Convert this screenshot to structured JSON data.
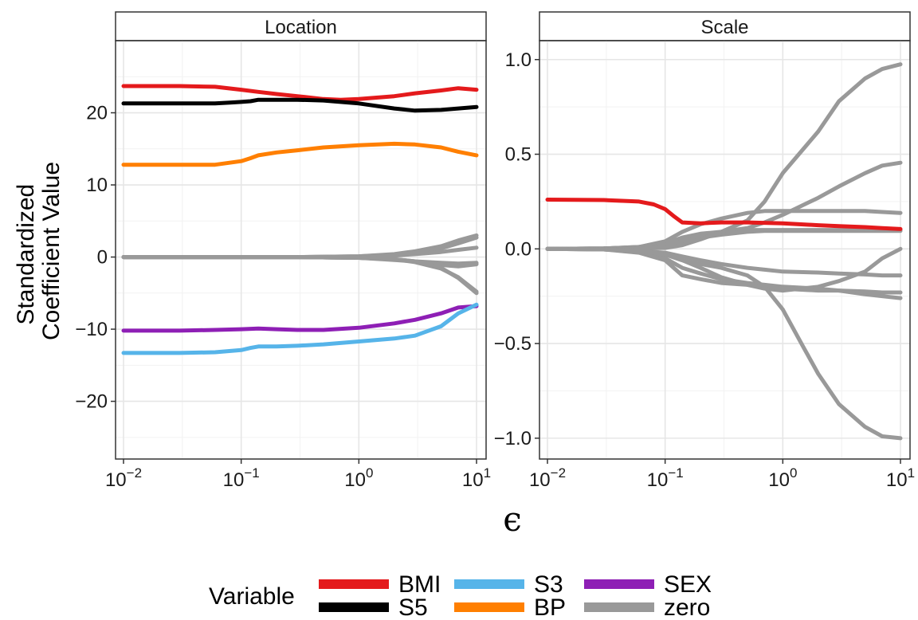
{
  "chart_data": {
    "type": "line",
    "xlabel": "ϵ",
    "ylabel_lines": [
      "Standardized",
      "Coefficient Value"
    ],
    "x_scale": "log10",
    "xlim": [
      0.01,
      10
    ],
    "x_ticks": [
      {
        "base": "10",
        "exp": "−2",
        "value": 0.01
      },
      {
        "base": "10",
        "exp": "−1",
        "value": 0.1
      },
      {
        "base": "10",
        "exp": "0",
        "value": 1
      },
      {
        "base": "10",
        "exp": "1",
        "value": 10
      }
    ],
    "grid": true,
    "legend": {
      "title": "Variable",
      "position": "bottom",
      "items": [
        {
          "name": "BMI",
          "color": "#E41A1C"
        },
        {
          "name": "S5",
          "color": "#000000"
        },
        {
          "name": "S3",
          "color": "#56B4E9"
        },
        {
          "name": "BP",
          "color": "#FF7F00"
        },
        {
          "name": "SEX",
          "color": "#8E1FB5"
        },
        {
          "name": "zero",
          "color": "#999999"
        }
      ]
    },
    "panels": [
      {
        "title": "Location",
        "ylim": [
          -28,
          30
        ],
        "y_ticks": [
          {
            "value": -20,
            "label": "−20"
          },
          {
            "value": -10,
            "label": "−10"
          },
          {
            "value": 0,
            "label": "0"
          },
          {
            "value": 10,
            "label": "10"
          },
          {
            "value": 20,
            "label": "20"
          }
        ],
        "series": [
          {
            "name": "BMI",
            "color": "#E41A1C",
            "x": [
              0.01,
              0.03,
              0.06,
              0.1,
              0.14,
              0.2,
              0.3,
              0.5,
              0.7,
              1,
              2,
              3,
              5,
              7,
              10
            ],
            "y": [
              23.7,
              23.7,
              23.6,
              23.2,
              22.9,
              22.6,
              22.3,
              21.9,
              21.8,
              21.9,
              22.3,
              22.7,
              23.1,
              23.4,
              23.2
            ]
          },
          {
            "name": "S5",
            "color": "#000000",
            "x": [
              0.01,
              0.03,
              0.06,
              0.08,
              0.1,
              0.12,
              0.14,
              0.2,
              0.3,
              0.5,
              1,
              2,
              3,
              5,
              7,
              10
            ],
            "y": [
              21.3,
              21.3,
              21.3,
              21.4,
              21.5,
              21.6,
              21.8,
              21.8,
              21.8,
              21.7,
              21.3,
              20.6,
              20.3,
              20.4,
              20.6,
              20.8
            ]
          },
          {
            "name": "BP",
            "color": "#FF7F00",
            "x": [
              0.01,
              0.03,
              0.06,
              0.1,
              0.12,
              0.14,
              0.2,
              0.3,
              0.5,
              1,
              2,
              3,
              5,
              7,
              10
            ],
            "y": [
              12.8,
              12.8,
              12.8,
              13.3,
              13.7,
              14.1,
              14.5,
              14.8,
              15.2,
              15.5,
              15.7,
              15.6,
              15.2,
              14.6,
              14.1
            ]
          },
          {
            "name": "SEX",
            "color": "#8E1FB5",
            "x": [
              0.01,
              0.03,
              0.06,
              0.1,
              0.14,
              0.2,
              0.3,
              0.5,
              1,
              2,
              3,
              5,
              7,
              10
            ],
            "y": [
              -10.2,
              -10.2,
              -10.1,
              -10.0,
              -9.9,
              -10.0,
              -10.1,
              -10.1,
              -9.8,
              -9.2,
              -8.7,
              -7.8,
              -7.0,
              -6.8
            ]
          },
          {
            "name": "S3",
            "color": "#56B4E9",
            "x": [
              0.01,
              0.03,
              0.06,
              0.1,
              0.12,
              0.14,
              0.2,
              0.3,
              0.5,
              1,
              2,
              3,
              5,
              7,
              10
            ],
            "y": [
              -13.3,
              -13.3,
              -13.2,
              -12.9,
              -12.6,
              -12.4,
              -12.4,
              -12.3,
              -12.1,
              -11.7,
              -11.3,
              -10.9,
              -9.6,
              -7.8,
              -6.6
            ]
          },
          {
            "name": "zero",
            "color": "#999999",
            "x": [
              0.01,
              0.3,
              1,
              2,
              3,
              5,
              7,
              10
            ],
            "y": [
              0,
              0,
              0.1,
              0.4,
              0.8,
              1.5,
              2.3,
              3.0
            ]
          },
          {
            "name": "zero",
            "color": "#999999",
            "x": [
              0.01,
              0.3,
              1,
              2,
              3,
              5,
              7,
              10
            ],
            "y": [
              0,
              0,
              0.1,
              0.3,
              0.6,
              1.2,
              1.9,
              2.7
            ]
          },
          {
            "name": "zero",
            "color": "#999999",
            "x": [
              0.01,
              0.3,
              1,
              2,
              3,
              5,
              7,
              10
            ],
            "y": [
              0,
              0,
              0.05,
              0.2,
              0.4,
              0.7,
              1.0,
              1.3
            ]
          },
          {
            "name": "zero",
            "color": "#999999",
            "x": [
              0.01,
              0.3,
              1,
              2,
              3,
              5,
              7,
              10
            ],
            "y": [
              0,
              0,
              -0.1,
              -0.4,
              -0.6,
              -0.8,
              -0.9,
              -0.8
            ]
          },
          {
            "name": "zero",
            "color": "#999999",
            "x": [
              0.01,
              0.3,
              1,
              2,
              3,
              5,
              7,
              10
            ],
            "y": [
              0,
              0,
              -0.1,
              -0.3,
              -0.6,
              -1.1,
              -1.3,
              -1.0
            ]
          },
          {
            "name": "zero",
            "color": "#999999",
            "x": [
              0.01,
              0.3,
              1,
              2,
              3,
              5,
              7,
              10
            ],
            "y": [
              0,
              0,
              -0.1,
              -0.3,
              -0.7,
              -1.6,
              -2.8,
              -4.8
            ]
          },
          {
            "name": "zero",
            "color": "#999999",
            "x": [
              0.01,
              0.3,
              1,
              2,
              3,
              5,
              7,
              10
            ],
            "y": [
              0,
              0,
              -0.1,
              -0.3,
              -0.6,
              -1.5,
              -2.9,
              -5.0
            ]
          }
        ]
      },
      {
        "title": "Scale",
        "ylim": [
          -1.11,
          1.1
        ],
        "y_ticks": [
          {
            "value": -1.0,
            "label": "−1.0"
          },
          {
            "value": -0.5,
            "label": "−0.5"
          },
          {
            "value": 0.0,
            "label": "0.0"
          },
          {
            "value": 0.5,
            "label": "0.5"
          },
          {
            "value": 1.0,
            "label": "1.0"
          }
        ],
        "series": [
          {
            "name": "BMI",
            "color": "#E41A1C",
            "x": [
              0.01,
              0.03,
              0.06,
              0.08,
              0.1,
              0.12,
              0.14,
              0.2,
              0.3,
              0.5,
              1,
              2,
              3,
              5,
              7,
              10
            ],
            "y": [
              0.26,
              0.258,
              0.25,
              0.235,
              0.21,
              0.17,
              0.14,
              0.135,
              0.14,
              0.14,
              0.135,
              0.125,
              0.12,
              0.115,
              0.11,
              0.105
            ]
          },
          {
            "name": "zero",
            "color": "#999999",
            "x": [
              0.01,
              0.03,
              0.06,
              0.1,
              0.14,
              0.2,
              0.3,
              0.5,
              0.7,
              1,
              2,
              3,
              5,
              7,
              10
            ],
            "y": [
              0,
              0.002,
              0.01,
              0.04,
              0.09,
              0.13,
              0.16,
              0.19,
              0.2,
              0.2,
              0.2,
              0.2,
              0.2,
              0.195,
              0.19
            ]
          },
          {
            "name": "zero",
            "color": "#999999",
            "x": [
              0.01,
              0.03,
              0.06,
              0.1,
              0.14,
              0.2,
              0.3,
              0.5,
              0.7,
              1,
              2,
              3,
              5,
              7,
              10
            ],
            "y": [
              0,
              0.002,
              0.008,
              0.025,
              0.05,
              0.07,
              0.09,
              0.11,
              0.14,
              0.18,
              0.27,
              0.33,
              0.4,
              0.44,
              0.455
            ]
          },
          {
            "name": "zero",
            "color": "#999999",
            "x": [
              0.01,
              0.03,
              0.06,
              0.1,
              0.14,
              0.2,
              0.3,
              0.5,
              0.7,
              1,
              2,
              3,
              5,
              7,
              10
            ],
            "y": [
              0,
              0.002,
              0.01,
              0.03,
              0.06,
              0.08,
              0.09,
              0.1,
              0.1,
              0.1,
              0.1,
              0.1,
              0.1,
              0.1,
              0.1
            ]
          },
          {
            "name": "zero",
            "color": "#999999",
            "x": [
              0.01,
              0.03,
              0.06,
              0.1,
              0.14,
              0.2,
              0.3,
              0.5,
              0.7,
              1,
              2,
              3,
              5,
              7,
              10
            ],
            "y": [
              0,
              0.002,
              0.008,
              0.02,
              0.04,
              0.06,
              0.075,
              0.09,
              0.095,
              0.095,
              0.095,
              0.095,
              0.095,
              0.095,
              0.095
            ]
          },
          {
            "name": "zero",
            "color": "#999999",
            "x": [
              0.01,
              0.03,
              0.06,
              0.1,
              0.14,
              0.2,
              0.3,
              0.5,
              0.7,
              1,
              2,
              3,
              5,
              7,
              10
            ],
            "y": [
              0,
              0.001,
              0.002,
              0.005,
              0.02,
              0.05,
              0.09,
              0.15,
              0.25,
              0.4,
              0.62,
              0.78,
              0.9,
              0.95,
              0.975
            ]
          },
          {
            "name": "zero",
            "color": "#999999",
            "x": [
              0.01,
              0.03,
              0.06,
              0.1,
              0.14,
              0.2,
              0.3,
              0.5,
              0.7,
              1,
              2,
              3,
              5,
              7,
              10
            ],
            "y": [
              0,
              -0.002,
              -0.01,
              -0.02,
              -0.04,
              -0.06,
              -0.08,
              -0.1,
              -0.11,
              -0.12,
              -0.125,
              -0.13,
              -0.135,
              -0.14,
              -0.14
            ]
          },
          {
            "name": "zero",
            "color": "#999999",
            "x": [
              0.01,
              0.03,
              0.06,
              0.1,
              0.14,
              0.2,
              0.3,
              0.5,
              0.7,
              1,
              2,
              3,
              5,
              7,
              10
            ],
            "y": [
              0,
              -0.002,
              -0.01,
              -0.03,
              -0.06,
              -0.1,
              -0.15,
              -0.19,
              -0.21,
              -0.22,
              -0.2,
              -0.17,
              -0.12,
              -0.05,
              0.0
            ]
          },
          {
            "name": "zero",
            "color": "#999999",
            "x": [
              0.01,
              0.03,
              0.06,
              0.1,
              0.14,
              0.2,
              0.3,
              0.5,
              0.7,
              1,
              2,
              3,
              5,
              7,
              10
            ],
            "y": [
              0,
              -0.003,
              -0.015,
              -0.05,
              -0.1,
              -0.13,
              -0.16,
              -0.18,
              -0.19,
              -0.2,
              -0.21,
              -0.22,
              -0.24,
              -0.25,
              -0.26
            ]
          },
          {
            "name": "zero",
            "color": "#999999",
            "x": [
              0.01,
              0.03,
              0.06,
              0.1,
              0.14,
              0.2,
              0.3,
              0.5,
              0.7,
              1,
              2,
              3,
              5,
              7,
              10
            ],
            "y": [
              0,
              -0.003,
              -0.02,
              -0.06,
              -0.14,
              -0.16,
              -0.18,
              -0.19,
              -0.2,
              -0.21,
              -0.22,
              -0.22,
              -0.225,
              -0.23,
              -0.23
            ]
          },
          {
            "name": "zero",
            "color": "#999999",
            "x": [
              0.01,
              0.03,
              0.06,
              0.1,
              0.14,
              0.2,
              0.3,
              0.5,
              0.7,
              1,
              1.5,
              2,
              3,
              5,
              7,
              10
            ],
            "y": [
              0,
              -0.003,
              -0.01,
              -0.03,
              -0.06,
              -0.08,
              -0.1,
              -0.14,
              -0.2,
              -0.32,
              -0.52,
              -0.66,
              -0.82,
              -0.94,
              -0.99,
              -1.0
            ]
          }
        ]
      }
    ]
  }
}
